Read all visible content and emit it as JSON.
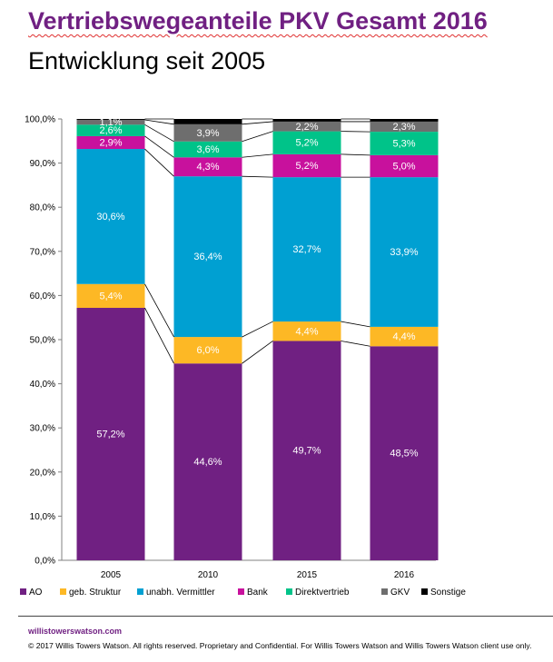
{
  "header": {
    "title": "Vertriebswegeanteile PKV Gesamt 2016",
    "subtitle": "Entwicklung seit 2005"
  },
  "footer": {
    "link": "willistowerswatson.com",
    "copyright": "© 2017 Willis Towers Watson. All rights reserved. Proprietary and Confidential. For Willis Towers Watson and Willis Towers Watson client use only."
  },
  "colors": {
    "AO": "#702082",
    "geb. Struktur": "#FDB825",
    "unabh. Vermittler": "#00A0D2",
    "Bank": "#C8119D",
    "Direktvertrieb": "#00C389",
    "GKV": "#6E6E6E",
    "Sonstige": "#000000"
  },
  "chart_data": {
    "type": "bar",
    "stacked": true,
    "categories": [
      "2005",
      "2010",
      "2015",
      "2016"
    ],
    "ylim": [
      0,
      100
    ],
    "yticks": [
      "0,0%",
      "10,0%",
      "20,0%",
      "30,0%",
      "40,0%",
      "50,0%",
      "60,0%",
      "70,0%",
      "80,0%",
      "90,0%",
      "100,0%"
    ],
    "legend_position": "bottom",
    "series": [
      {
        "name": "AO",
        "values": [
          57.2,
          44.6,
          49.7,
          48.5
        ],
        "labels": [
          "57,2%",
          "44,6%",
          "49,7%",
          "48,5%"
        ]
      },
      {
        "name": "geb. Struktur",
        "values": [
          5.4,
          6.0,
          4.4,
          4.4
        ],
        "labels": [
          "5,4%",
          "6,0%",
          "4,4%",
          "4,4%"
        ]
      },
      {
        "name": "unabh. Vermittler",
        "values": [
          30.6,
          36.4,
          32.7,
          33.9
        ],
        "labels": [
          "30,6%",
          "36,4%",
          "32,7%",
          "33,9%"
        ]
      },
      {
        "name": "Bank",
        "values": [
          2.9,
          4.3,
          5.2,
          5.0
        ],
        "labels": [
          "2,9%",
          "4,3%",
          "5,2%",
          "5,0%"
        ]
      },
      {
        "name": "Direktvertrieb",
        "values": [
          2.6,
          3.6,
          5.2,
          5.3
        ],
        "labels": [
          "2,6%",
          "3,6%",
          "5,2%",
          "5,3%"
        ]
      },
      {
        "name": "GKV",
        "values": [
          1.1,
          3.9,
          2.2,
          2.3
        ],
        "labels": [
          "1,1%",
          "3,9%",
          "2,2%",
          "2,3%"
        ]
      },
      {
        "name": "Sonstige",
        "values": [
          0.2,
          1.2,
          0.6,
          0.6
        ],
        "labels": [
          "",
          "",
          "",
          ""
        ]
      }
    ]
  }
}
